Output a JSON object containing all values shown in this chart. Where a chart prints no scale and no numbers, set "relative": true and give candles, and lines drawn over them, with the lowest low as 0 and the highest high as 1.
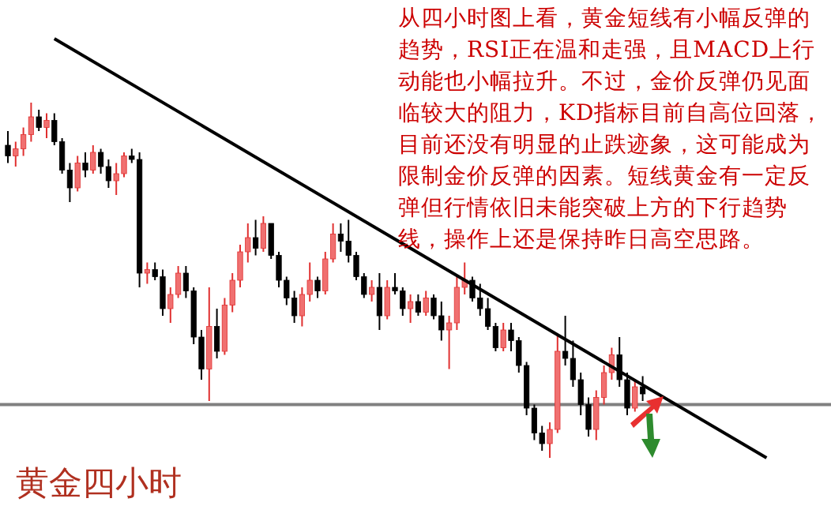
{
  "chart_data": {
    "type": "candlestick",
    "relative": true,
    "title": "黄金四小时",
    "annotations": [
      "从四小时图上看，黄金短线有小幅反弹的趋势，RSI正在温和走强，且MACD上行动能也小幅拉升。不过，金价反弹仍见面临较大的阻力，KD指标目前自高位回落，目前还没有明显的止跌迹象，这可能成为限制金价反弹的因素。短线黄金有一定反弹但行情依旧未能突破上方的下行趋势线，操作上还是保持昨日高空思路。"
    ],
    "categories": [
      null,
      null,
      null,
      null,
      null,
      null,
      null,
      null,
      null,
      null,
      null,
      null,
      null,
      null,
      null,
      null,
      null,
      null,
      null,
      null,
      null,
      null,
      null,
      null,
      null,
      null,
      null,
      null,
      null,
      null,
      null,
      null,
      null,
      null,
      null,
      null,
      null,
      null,
      null,
      null,
      null,
      null,
      null,
      null,
      null,
      null,
      null,
      null,
      null,
      null,
      null,
      null,
      null,
      null,
      null,
      null,
      null,
      null,
      null,
      null,
      null,
      null,
      null,
      null,
      null,
      null,
      null,
      null,
      null,
      null,
      null,
      null,
      null,
      null,
      null,
      null,
      null,
      null,
      null,
      null,
      null,
      null,
      null,
      null,
      null,
      null,
      null,
      null,
      null,
      null,
      null,
      null,
      null,
      null,
      null,
      null,
      null,
      null,
      null
    ],
    "ohlc": [
      [
        0.88,
        0.92,
        0.83,
        0.85
      ],
      [
        0.85,
        0.89,
        0.82,
        0.87
      ],
      [
        0.87,
        0.93,
        0.85,
        0.91
      ],
      [
        0.91,
        1.0,
        0.89,
        0.96
      ],
      [
        0.96,
        0.98,
        0.92,
        0.93
      ],
      [
        0.93,
        0.97,
        0.9,
        0.95
      ],
      [
        0.95,
        0.97,
        0.88,
        0.89
      ],
      [
        0.89,
        0.9,
        0.8,
        0.81
      ],
      [
        0.81,
        0.83,
        0.72,
        0.76
      ],
      [
        0.76,
        0.85,
        0.75,
        0.83
      ],
      [
        0.83,
        0.86,
        0.79,
        0.81
      ],
      [
        0.81,
        0.88,
        0.8,
        0.86
      ],
      [
        0.86,
        0.87,
        0.8,
        0.82
      ],
      [
        0.82,
        0.84,
        0.76,
        0.78
      ],
      [
        0.78,
        0.83,
        0.74,
        0.8
      ],
      [
        0.8,
        0.86,
        0.79,
        0.85
      ],
      [
        0.85,
        0.87,
        0.83,
        0.84
      ],
      [
        0.84,
        0.86,
        0.48,
        0.52
      ],
      [
        0.52,
        0.55,
        0.49,
        0.53
      ],
      [
        0.53,
        0.55,
        0.5,
        0.51
      ],
      [
        0.51,
        0.53,
        0.4,
        0.42
      ],
      [
        0.42,
        0.48,
        0.38,
        0.46
      ],
      [
        0.46,
        0.54,
        0.45,
        0.52
      ],
      [
        0.52,
        0.54,
        0.45,
        0.47
      ],
      [
        0.47,
        0.48,
        0.32,
        0.34
      ],
      [
        0.34,
        0.36,
        0.22,
        0.25
      ],
      [
        0.25,
        0.48,
        0.16,
        0.37
      ],
      [
        0.37,
        0.42,
        0.28,
        0.3
      ],
      [
        0.3,
        0.45,
        0.29,
        0.43
      ],
      [
        0.43,
        0.52,
        0.41,
        0.5
      ],
      [
        0.5,
        0.6,
        0.48,
        0.58
      ],
      [
        0.58,
        0.66,
        0.55,
        0.62
      ],
      [
        0.62,
        0.67,
        0.57,
        0.59
      ],
      [
        0.59,
        0.68,
        0.58,
        0.66
      ],
      [
        0.66,
        0.66,
        0.56,
        0.57
      ],
      [
        0.57,
        0.58,
        0.48,
        0.5
      ],
      [
        0.5,
        0.51,
        0.43,
        0.45
      ],
      [
        0.45,
        0.47,
        0.38,
        0.4
      ],
      [
        0.4,
        0.48,
        0.37,
        0.46
      ],
      [
        0.46,
        0.55,
        0.44,
        0.5
      ],
      [
        0.5,
        0.51,
        0.45,
        0.47
      ],
      [
        0.47,
        0.58,
        0.46,
        0.56
      ],
      [
        0.56,
        0.66,
        0.55,
        0.63
      ],
      [
        0.63,
        0.66,
        0.58,
        0.61
      ],
      [
        0.61,
        0.67,
        0.55,
        0.57
      ],
      [
        0.57,
        0.58,
        0.5,
        0.51
      ],
      [
        0.51,
        0.52,
        0.45,
        0.46
      ],
      [
        0.46,
        0.5,
        0.44,
        0.48
      ],
      [
        0.48,
        0.52,
        0.36,
        0.4
      ],
      [
        0.4,
        0.5,
        0.39,
        0.48
      ],
      [
        0.48,
        0.52,
        0.46,
        0.47
      ],
      [
        0.47,
        0.48,
        0.4,
        0.42
      ],
      [
        0.42,
        0.46,
        0.38,
        0.44
      ],
      [
        0.44,
        0.46,
        0.4,
        0.41
      ],
      [
        0.41,
        0.47,
        0.4,
        0.45
      ],
      [
        0.45,
        0.46,
        0.39,
        0.4
      ],
      [
        0.4,
        0.44,
        0.33,
        0.36
      ],
      [
        0.36,
        0.4,
        0.25,
        0.38
      ],
      [
        0.38,
        0.51,
        0.36,
        0.48
      ],
      [
        0.48,
        0.55,
        0.46,
        0.5
      ],
      [
        0.5,
        0.51,
        0.44,
        0.45
      ],
      [
        0.45,
        0.49,
        0.4,
        0.42
      ],
      [
        0.42,
        0.45,
        0.36,
        0.37
      ],
      [
        0.37,
        0.38,
        0.3,
        0.31
      ],
      [
        0.31,
        0.38,
        0.3,
        0.36
      ],
      [
        0.36,
        0.38,
        0.3,
        0.33
      ],
      [
        0.33,
        0.34,
        0.24,
        0.26
      ],
      [
        0.26,
        0.27,
        0.12,
        0.14
      ],
      [
        0.14,
        0.15,
        0.05,
        0.07
      ],
      [
        0.07,
        0.09,
        0.02,
        0.04
      ],
      [
        0.04,
        0.1,
        0.0,
        0.08
      ],
      [
        0.08,
        0.35,
        0.07,
        0.3
      ],
      [
        0.3,
        0.4,
        0.26,
        0.28
      ],
      [
        0.28,
        0.33,
        0.2,
        0.22
      ],
      [
        0.22,
        0.24,
        0.12,
        0.15
      ],
      [
        0.15,
        0.17,
        0.06,
        0.08
      ],
      [
        0.08,
        0.19,
        0.05,
        0.17
      ],
      [
        0.17,
        0.26,
        0.15,
        0.24
      ],
      [
        0.24,
        0.31,
        0.22,
        0.29
      ],
      [
        0.29,
        0.34,
        0.2,
        0.22
      ],
      [
        0.22,
        0.24,
        0.12,
        0.14
      ],
      [
        0.14,
        0.22,
        0.13,
        0.2
      ],
      [
        0.2,
        0.23,
        0.16,
        0.18
      ],
      null,
      null,
      null,
      null,
      null,
      null,
      null,
      null,
      null,
      null,
      null,
      null,
      null,
      null,
      null,
      null
    ],
    "series": [
      {
        "type": "line",
        "color": "#000000",
        "values": [
          null,
          null,
          null,
          null,
          null,
          null,
          1.18,
          null,
          null,
          null,
          null,
          null,
          null,
          null,
          null,
          null,
          null,
          null,
          null,
          null,
          null,
          null,
          null,
          null,
          null,
          null,
          null,
          null,
          null,
          null,
          null,
          null,
          null,
          null,
          null,
          null,
          null,
          null,
          null,
          null,
          null,
          null,
          null,
          null,
          null,
          null,
          null,
          null,
          null,
          null,
          null,
          null,
          null,
          null,
          null,
          null,
          null,
          null,
          null,
          null,
          null,
          null,
          null,
          null,
          null,
          null,
          null,
          null,
          null,
          null,
          null,
          null,
          null,
          null,
          null,
          null,
          null,
          null,
          null,
          null,
          null,
          null,
          null,
          null,
          null,
          null,
          null,
          null,
          null,
          null,
          null,
          null,
          null,
          null,
          null,
          null,
          null,
          null,
          0.0
        ]
      }
    ],
    "ref_lines": [
      {
        "axis": "y",
        "value": 0.15,
        "color": "#808080"
      }
    ]
  }
}
